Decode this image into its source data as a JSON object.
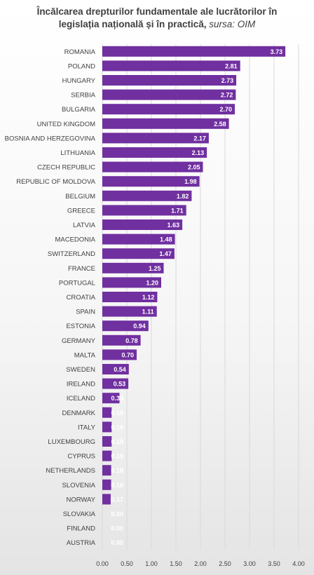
{
  "title_line1": "Încălcarea drepturilor fundamentale ale lucrătorilor în",
  "title_line2": "legislația  națională și în practică,",
  "title_source": "sursa: OIM",
  "colors": {
    "bar": "#7030a0",
    "grid": "#d9d9d9",
    "text": "#404040",
    "label": "#ffffff"
  },
  "chart_data": {
    "type": "bar",
    "orientation": "horizontal",
    "categories": [
      "ROMANIA",
      "POLAND",
      "HUNGARY",
      "SERBIA",
      "BULGARIA",
      "UNITED KINGDOM",
      "BOSNIA AND HERZEGOVINA",
      "LITHUANIA",
      "CZECH REPUBLIC",
      "REPUBLIC OF MOLDOVA",
      "BELGIUM",
      "GREECE",
      "LATVIA",
      "MACEDONIA",
      "SWITZERLAND",
      "FRANCE",
      "PORTUGAL",
      "CROATIA",
      "SPAIN",
      "ESTONIA",
      "GERMANY",
      "MALTA",
      "SWEDEN",
      "IRELAND",
      "ICELAND",
      "DENMARK",
      "ITALY",
      "LUXEMBOURG",
      "CYPRUS",
      "NETHERLANDS",
      "SLOVENIA",
      "NORWAY",
      "SLOVAKIA",
      "FINLAND",
      "AUSTRIA"
    ],
    "values": [
      3.73,
      2.81,
      2.73,
      2.72,
      2.7,
      2.58,
      2.17,
      2.13,
      2.05,
      1.98,
      1.82,
      1.71,
      1.63,
      1.48,
      1.47,
      1.25,
      1.2,
      1.12,
      1.11,
      0.94,
      0.78,
      0.7,
      0.54,
      0.53,
      0.35,
      0.19,
      0.19,
      0.19,
      0.19,
      0.18,
      0.18,
      0.17,
      0.0,
      0.0,
      0.0
    ],
    "value_labels": [
      "3.73",
      "2.81",
      "2.73",
      "2.72",
      "2.70",
      "2.58",
      "2.17",
      "2.13",
      "2.05",
      "1.98",
      "1.82",
      "1.71",
      "1.63",
      "1.48",
      "1.47",
      "1.25",
      "1.20",
      "1.12",
      "1.11",
      "0.94",
      "0.78",
      "0.70",
      "0.54",
      "0.53",
      "0.35",
      "0.19",
      "0.19",
      "0.19",
      "0.19",
      "0.18",
      "0.18",
      "0.17",
      "0.00",
      "0.00",
      "0.00"
    ],
    "xlim": [
      0,
      4
    ],
    "ticks": [
      "0.00",
      "0.50",
      "1.00",
      "1.50",
      "2.00",
      "2.50",
      "3.00",
      "3.50",
      "4.00"
    ],
    "tick_values": [
      0,
      0.5,
      1,
      1.5,
      2,
      2.5,
      3,
      3.5,
      4
    ],
    "grid": true
  }
}
